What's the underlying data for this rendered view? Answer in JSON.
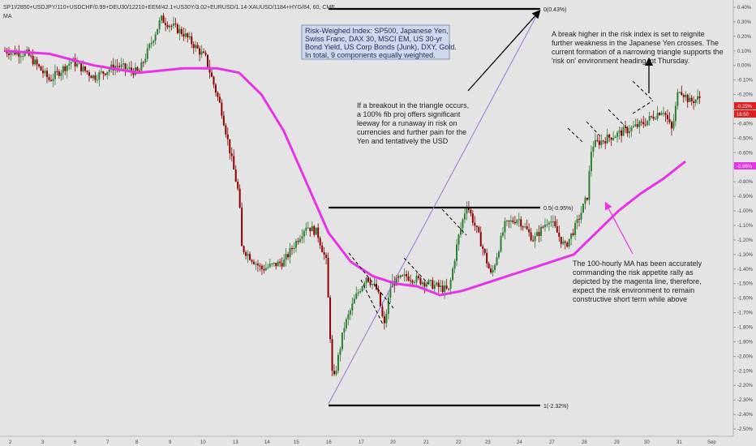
{
  "chart_data": {
    "type": "candlestick",
    "symbol": "SP1!/2850+USDJPY/110+USDCHF/0.99+DEU30/12210+EEM/42.1+US30Y/3.02+EURUSD/1.14-XAUUSD/1184+HYG/84, 60, CME",
    "indicator_label": "MA",
    "y_axis": {
      "ticks": [
        "0.40%",
        "0.30%",
        "0.20%",
        "0.10%",
        "0.00%",
        "-0.10%",
        "-0.20%",
        "-0.30%",
        "-0.40%",
        "-0.50%",
        "-0.60%",
        "-0.70%",
        "-0.80%",
        "-0.90%",
        "-1.00%",
        "-1.10%",
        "-1.20%",
        "-1.30%",
        "-1.40%",
        "-1.50%",
        "-1.60%",
        "-1.70%",
        "-1.80%",
        "-1.90%",
        "-2.00%",
        "-2.10%",
        "-2.20%",
        "-2.30%",
        "-2.40%",
        "-2.50%"
      ],
      "range": [
        -2.55,
        0.45
      ]
    },
    "x_axis": {
      "ticks": [
        "2",
        "3",
        "6",
        "7",
        "8",
        "9",
        "10",
        "13",
        "14",
        "15",
        "16",
        "17",
        "20",
        "21",
        "22",
        "23",
        "24",
        "27",
        "28",
        "29",
        "30",
        "31",
        "Sep"
      ]
    },
    "price_path": [
      [
        0,
        0.1
      ],
      [
        1,
        0.08
      ],
      [
        2,
        -0.1
      ],
      [
        3,
        0.03
      ],
      [
        4,
        -0.08
      ],
      [
        5,
        0.0
      ],
      [
        6,
        -0.05
      ],
      [
        7,
        0.32
      ],
      [
        8,
        0.22
      ],
      [
        9,
        0.05
      ],
      [
        9.7,
        -0.3
      ],
      [
        10.5,
        -0.9
      ],
      [
        10.6,
        -1.25
      ],
      [
        11.5,
        -1.4
      ],
      [
        12.5,
        -1.35
      ],
      [
        13.5,
        -1.1
      ],
      [
        14,
        -1.15
      ],
      [
        14.4,
        -1.35
      ],
      [
        14.7,
        -2.2
      ],
      [
        15.2,
        -1.8
      ],
      [
        15.7,
        -1.6
      ],
      [
        16.2,
        -1.45
      ],
      [
        16.7,
        -1.55
      ],
      [
        17.0,
        -1.8
      ],
      [
        17.3,
        -1.5
      ],
      [
        18,
        -1.45
      ],
      [
        19,
        -1.5
      ],
      [
        19.9,
        -1.55
      ],
      [
        20.3,
        -1.2
      ],
      [
        20.7,
        -0.95
      ],
      [
        21.3,
        -1.2
      ],
      [
        21.8,
        -1.45
      ],
      [
        22.4,
        -1.1
      ],
      [
        23.0,
        -1.05
      ],
      [
        23.7,
        -1.2
      ],
      [
        24.4,
        -1.05
      ],
      [
        25.1,
        -1.25
      ],
      [
        25.6,
        -1.1
      ],
      [
        26.1,
        -0.9
      ],
      [
        26.3,
        -0.55
      ],
      [
        27.0,
        -0.5
      ],
      [
        27.8,
        -0.45
      ],
      [
        28.6,
        -0.4
      ],
      [
        29.5,
        -0.3
      ],
      [
        29.9,
        -0.45
      ],
      [
        30.2,
        -0.15
      ],
      [
        30.7,
        -0.25
      ],
      [
        31.2,
        -0.22
      ]
    ],
    "moving_average": {
      "label": "MA",
      "color": "#e633e6",
      "last_value": "-0.66%",
      "points": [
        [
          0,
          0.1
        ],
        [
          2,
          0.08
        ],
        [
          4,
          0.0
        ],
        [
          6,
          -0.05
        ],
        [
          8,
          -0.02
        ],
        [
          9.5,
          -0.02
        ],
        [
          10.5,
          -0.05
        ],
        [
          11.5,
          -0.2
        ],
        [
          12.5,
          -0.45
        ],
        [
          13.5,
          -0.8
        ],
        [
          14.5,
          -1.15
        ],
        [
          15.5,
          -1.35
        ],
        [
          16.5,
          -1.45
        ],
        [
          17.5,
          -1.5
        ],
        [
          18.5,
          -1.52
        ],
        [
          19.5,
          -1.58
        ],
        [
          20.5,
          -1.55
        ],
        [
          21.5,
          -1.5
        ],
        [
          22.5,
          -1.45
        ],
        [
          23.5,
          -1.4
        ],
        [
          24.5,
          -1.35
        ],
        [
          25.5,
          -1.3
        ],
        [
          26.5,
          -1.15
        ],
        [
          27.5,
          -1.0
        ],
        [
          28.5,
          -0.88
        ],
        [
          29.5,
          -0.78
        ],
        [
          30.5,
          -0.66
        ]
      ]
    },
    "last_price_badge": {
      "value": "-0.25%",
      "color": "#e02020"
    },
    "time_badge": {
      "value": "16:50",
      "color": "#e02020"
    },
    "fib_levels": [
      {
        "label": "0(0.43%)",
        "value": 0.43
      },
      {
        "label": "0.5(-0.95%)",
        "value": -0.95
      },
      {
        "label": "1(-2.32%)",
        "value": -2.32
      }
    ],
    "info_box": {
      "lines": [
        "Risk-Weighed Index: SP500, Japanese Yen,",
        "Swiss Franc, DAX 30, MSCI EM, US 30-yr",
        "Bond Yield, US Corp Bonds (Junk), DXY, Gold.",
        "In total, 9 components equally weighted."
      ]
    },
    "annotations": [
      {
        "lines": [
          "A break higher in the risk index is set to reignite",
          "further weakness in the Japanese Yen crosses. The",
          "current formation of a narrowing triangle supports the",
          "'risk on' environment heading int Thursday."
        ]
      },
      {
        "lines": [
          "If a breakout in the triangle occurs,",
          "a 100% fib proj offers significant",
          "leeway for a runaway in risk on",
          "currencies and further pain for the",
          "Yen and tentatively the USD"
        ]
      },
      {
        "lines": [
          "The 100-hourly MA has been accurately",
          "commanding the risk appetite rally as",
          "depicted by the magenta line, therefore,",
          "expect the risk environment to remain",
          "constructive short term while above"
        ]
      }
    ]
  }
}
